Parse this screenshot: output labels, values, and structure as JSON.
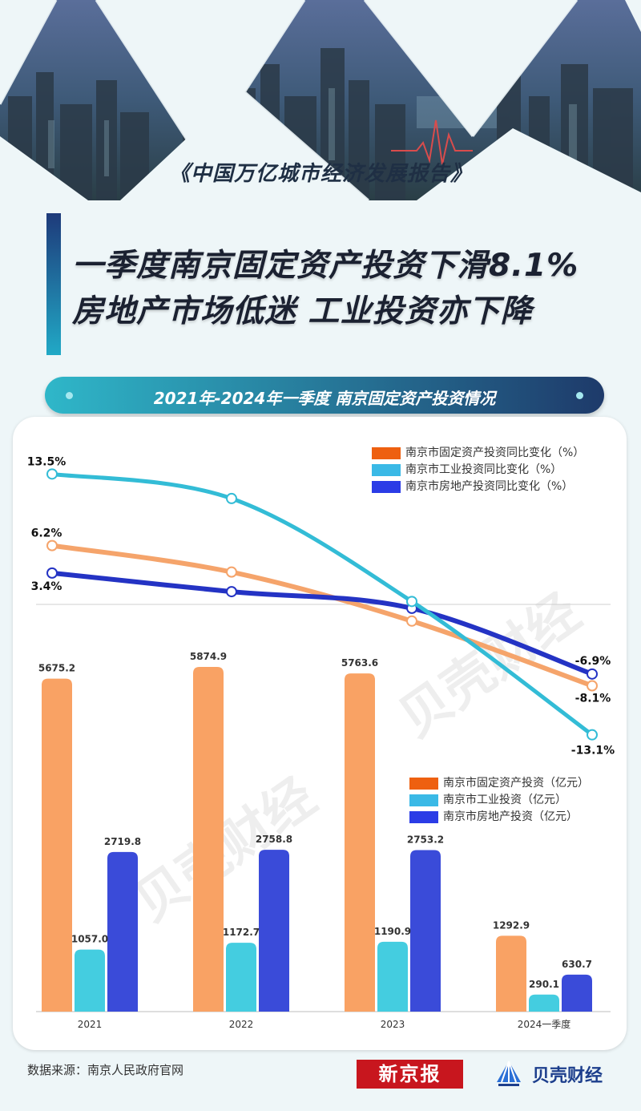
{
  "header": {
    "subtitle": "《中国万亿城市经济发展报告》",
    "title_line1": "一季度南京固定资产投资下滑8.1%",
    "title_line2": "房地产市场低迷 工业投资亦下降"
  },
  "section_title": "2021年-2024年一季度 南京固定资产投资情况",
  "colors": {
    "fixed_growth": "#f5a46b",
    "industrial_growth": "#33bcd6",
    "real_estate_growth": "#2433c4",
    "fixed": "#f9a264",
    "industrial": "#44cde0",
    "real_estate": "#3a4bd9",
    "legend_fixed": "#ee6010",
    "legend_industrial": "#3ab9e6",
    "legend_real_estate": "#2b3ce6"
  },
  "chart_data": [
    {
      "type": "line",
      "x": [
        "2021",
        "2022",
        "2023",
        "2024一季度"
      ],
      "series": [
        {
          "name": "南京市固定资产投资同比变化（%）",
          "values": [
            6.2,
            3.5,
            -1.5,
            -8.1
          ],
          "labels": [
            "6.2%",
            "",
            "",
            "-8.1%"
          ]
        },
        {
          "name": "南京市工业投资同比变化（%）",
          "values": [
            13.5,
            11.0,
            0.5,
            -13.1
          ],
          "labels": [
            "13.5%",
            "",
            "",
            "-13.1%"
          ]
        },
        {
          "name": "南京市房地产投资同比变化（%）",
          "values": [
            3.4,
            1.5,
            -0.2,
            -6.9
          ],
          "labels": [
            "3.4%",
            "",
            "",
            "-6.9%"
          ]
        }
      ],
      "ylim": [
        -14,
        15
      ]
    },
    {
      "type": "bar",
      "categories": [
        "2021",
        "2022",
        "2023",
        "2024一季度"
      ],
      "series": [
        {
          "name": "南京市固定资产投资（亿元）",
          "values": [
            5675.2,
            5874.9,
            5763.6,
            1292.9
          ]
        },
        {
          "name": "南京市工业投资（亿元）",
          "values": [
            1057.0,
            1172.7,
            1190.9,
            290.1
          ]
        },
        {
          "name": "南京市房地产投资（亿元）",
          "values": [
            2719.8,
            2758.8,
            2753.2,
            630.7
          ]
        }
      ],
      "ylim": [
        0,
        6200
      ]
    }
  ],
  "legend_lines": [
    "南京市固定资产投资同比变化（%）",
    "南京市工业投资同比变化（%）",
    "南京市房地产投资同比变化（%）"
  ],
  "legend_bars": [
    "南京市固定资产投资（亿元）",
    "南京市工业投资（亿元）",
    "南京市房地产投资（亿元）"
  ],
  "watermark": "贝壳财经",
  "footer": {
    "source": "数据来源：南京人民政府官网",
    "brand1": "新京报",
    "brand2": "贝壳财经"
  }
}
